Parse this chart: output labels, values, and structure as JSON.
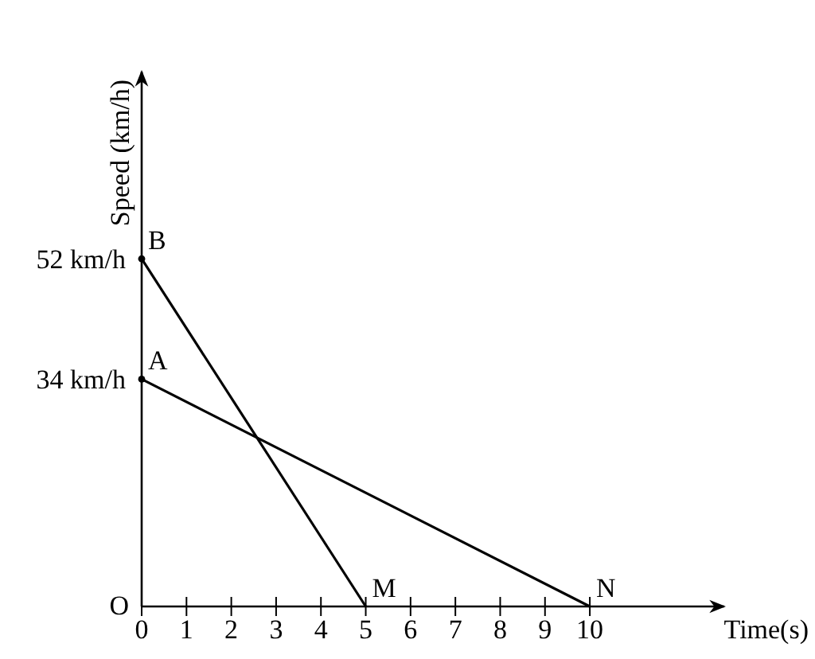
{
  "chart_data": {
    "type": "line",
    "xlabel": "Time(s)",
    "ylabel": "Speed (km/h)",
    "xlim": [
      0,
      13
    ],
    "ylim": [
      0,
      80
    ],
    "xticks": [
      0,
      1,
      2,
      3,
      4,
      5,
      6,
      7,
      8,
      9,
      10
    ],
    "yticks": [
      {
        "value": 52,
        "label": "52 km/h"
      },
      {
        "value": 34,
        "label": "34 km/h"
      }
    ],
    "series": [
      {
        "x": [
          0,
          5
        ],
        "values": [
          52,
          0
        ],
        "color": "#000000"
      },
      {
        "x": [
          0,
          10
        ],
        "values": [
          34,
          0
        ],
        "color": "#000000"
      }
    ],
    "annotations": [
      {
        "text": "B",
        "x": 0,
        "y": 52
      },
      {
        "text": "A",
        "x": 0,
        "y": 34
      },
      {
        "text": "M",
        "x": 5,
        "y": 0
      },
      {
        "text": "N",
        "x": 10,
        "y": 0
      },
      "O"
    ],
    "grid": false
  }
}
